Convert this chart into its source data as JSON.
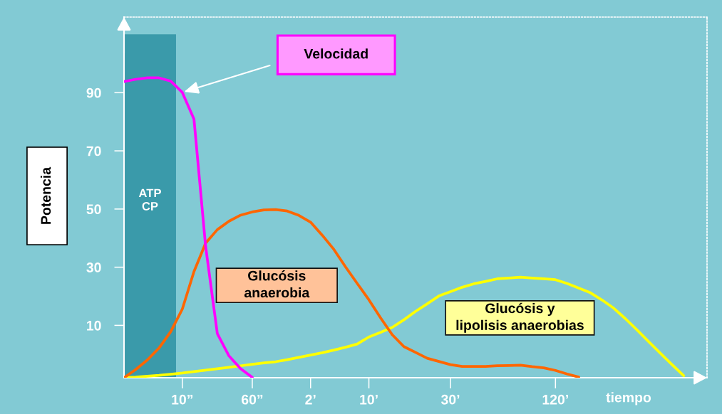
{
  "chart_data": {
    "type": "line",
    "xlabel": "tiempo",
    "ylabel": "Potencia",
    "categories": [
      null,
      null,
      null,
      null,
      null,
      "10”",
      null,
      null,
      null,
      null,
      null,
      "60”",
      null,
      null,
      null,
      null,
      "2’",
      null,
      null,
      null,
      null,
      "10’",
      null,
      null,
      null,
      null,
      null,
      null,
      "30’",
      null,
      null,
      null,
      null,
      null,
      null,
      null,
      null,
      "120’",
      null,
      null,
      null,
      null,
      null,
      null,
      null,
      null,
      null,
      null,
      null,
      null,
      null
    ],
    "ylim": [
      -8,
      116
    ],
    "yticks": [
      10,
      30,
      50,
      70,
      90
    ],
    "annotations": [
      "ATP\nCP"
    ],
    "series": [
      {
        "name": "Velocidad",
        "color": "#ff00ff",
        "values": [
          93.8,
          94.6,
          95.1,
          95.1,
          94.0,
          90.1,
          80.9,
          37.1,
          7.2,
          -0.5,
          -4.9,
          -7.9,
          null,
          null,
          null,
          null,
          null,
          null,
          null,
          null,
          null,
          null,
          null,
          null,
          null,
          null,
          null,
          null,
          null,
          null,
          null,
          null,
          null,
          null,
          null,
          null,
          null,
          null,
          null,
          null,
          null,
          null,
          null,
          null,
          null,
          null,
          null,
          null,
          null,
          null,
          null
        ]
      },
      {
        "name": "Glucósis\nanaerobia",
        "color": "#ff6600",
        "values": [
          -8.0,
          -5.2,
          -1.9,
          2.2,
          7.8,
          15.6,
          28.5,
          38.3,
          42.9,
          45.8,
          47.9,
          49.0,
          49.7,
          49.8,
          49.3,
          47.8,
          45.5,
          41.0,
          36.1,
          30.1,
          24.4,
          18.8,
          12.6,
          6.8,
          2.7,
          0.7,
          -1.3,
          -2.4,
          -3.5,
          -4.1,
          -4.1,
          -4.1,
          -3.9,
          -3.8,
          -3.7,
          -4.2,
          -4.6,
          -5.5,
          -6.7,
          -7.8,
          null,
          null,
          null,
          null,
          null,
          null,
          null,
          null,
          null,
          null,
          null
        ]
      },
      {
        "name": "Glucósis y\nlipolisis anaerobias",
        "color": "#ffff00",
        "values": [
          -8.0,
          -7.8,
          -7.5,
          -7.2,
          -6.8,
          -6.4,
          -5.9,
          -5.4,
          -4.9,
          -4.4,
          -3.9,
          -3.4,
          -2.9,
          -2.5,
          -1.8,
          -1.0,
          -0.2,
          0.6,
          1.5,
          2.5,
          3.6,
          6.0,
          7.6,
          9.3,
          11.9,
          14.8,
          17.4,
          20.1,
          21.6,
          23.1,
          24.3,
          25.1,
          26.0,
          26.3,
          26.6,
          26.3,
          26.0,
          25.7,
          24.4,
          22.8,
          21.2,
          18.7,
          15.9,
          12.3,
          8.4,
          4.4,
          0.4,
          -3.5,
          -7.3,
          null,
          null
        ]
      }
    ]
  }
}
